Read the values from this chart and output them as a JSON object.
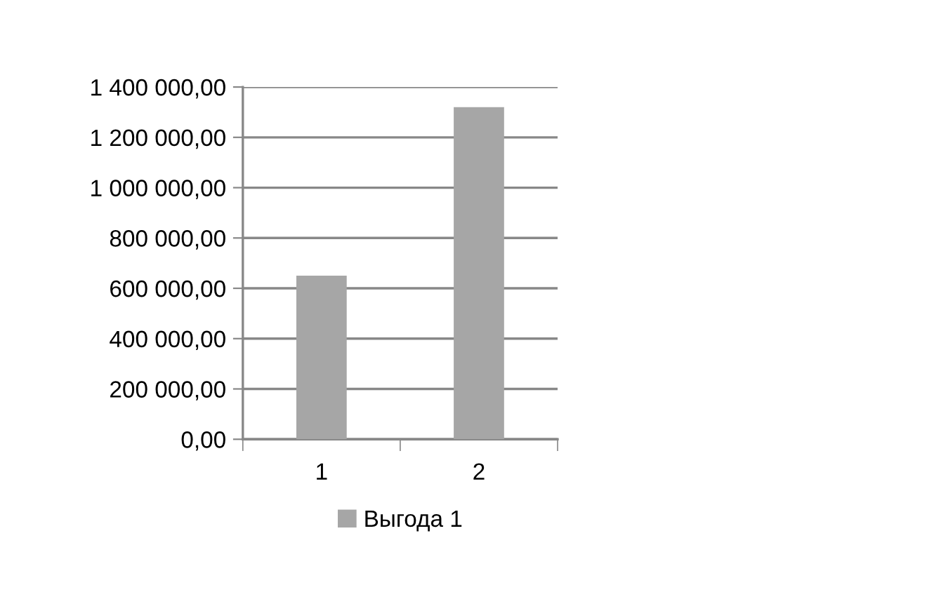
{
  "chart_data": {
    "type": "bar",
    "categories": [
      "1",
      "2"
    ],
    "series": [
      {
        "name": "Выгода 1",
        "color": "#a6a6a6",
        "values": [
          650000,
          1320000
        ]
      }
    ],
    "ylim": [
      0,
      1400000
    ],
    "yticks": [
      {
        "value": 0,
        "label": "0,00"
      },
      {
        "value": 200000,
        "label": "200 000,00"
      },
      {
        "value": 400000,
        "label": "400 000,00"
      },
      {
        "value": 600000,
        "label": "600 000,00"
      },
      {
        "value": 800000,
        "label": "800 000,00"
      },
      {
        "value": 1000000,
        "label": "1 000 000,00"
      },
      {
        "value": 1200000,
        "label": "1 200 000,00"
      },
      {
        "value": 1400000,
        "label": "1 400 000,00"
      }
    ],
    "grid": "y",
    "legend": "bottom"
  }
}
